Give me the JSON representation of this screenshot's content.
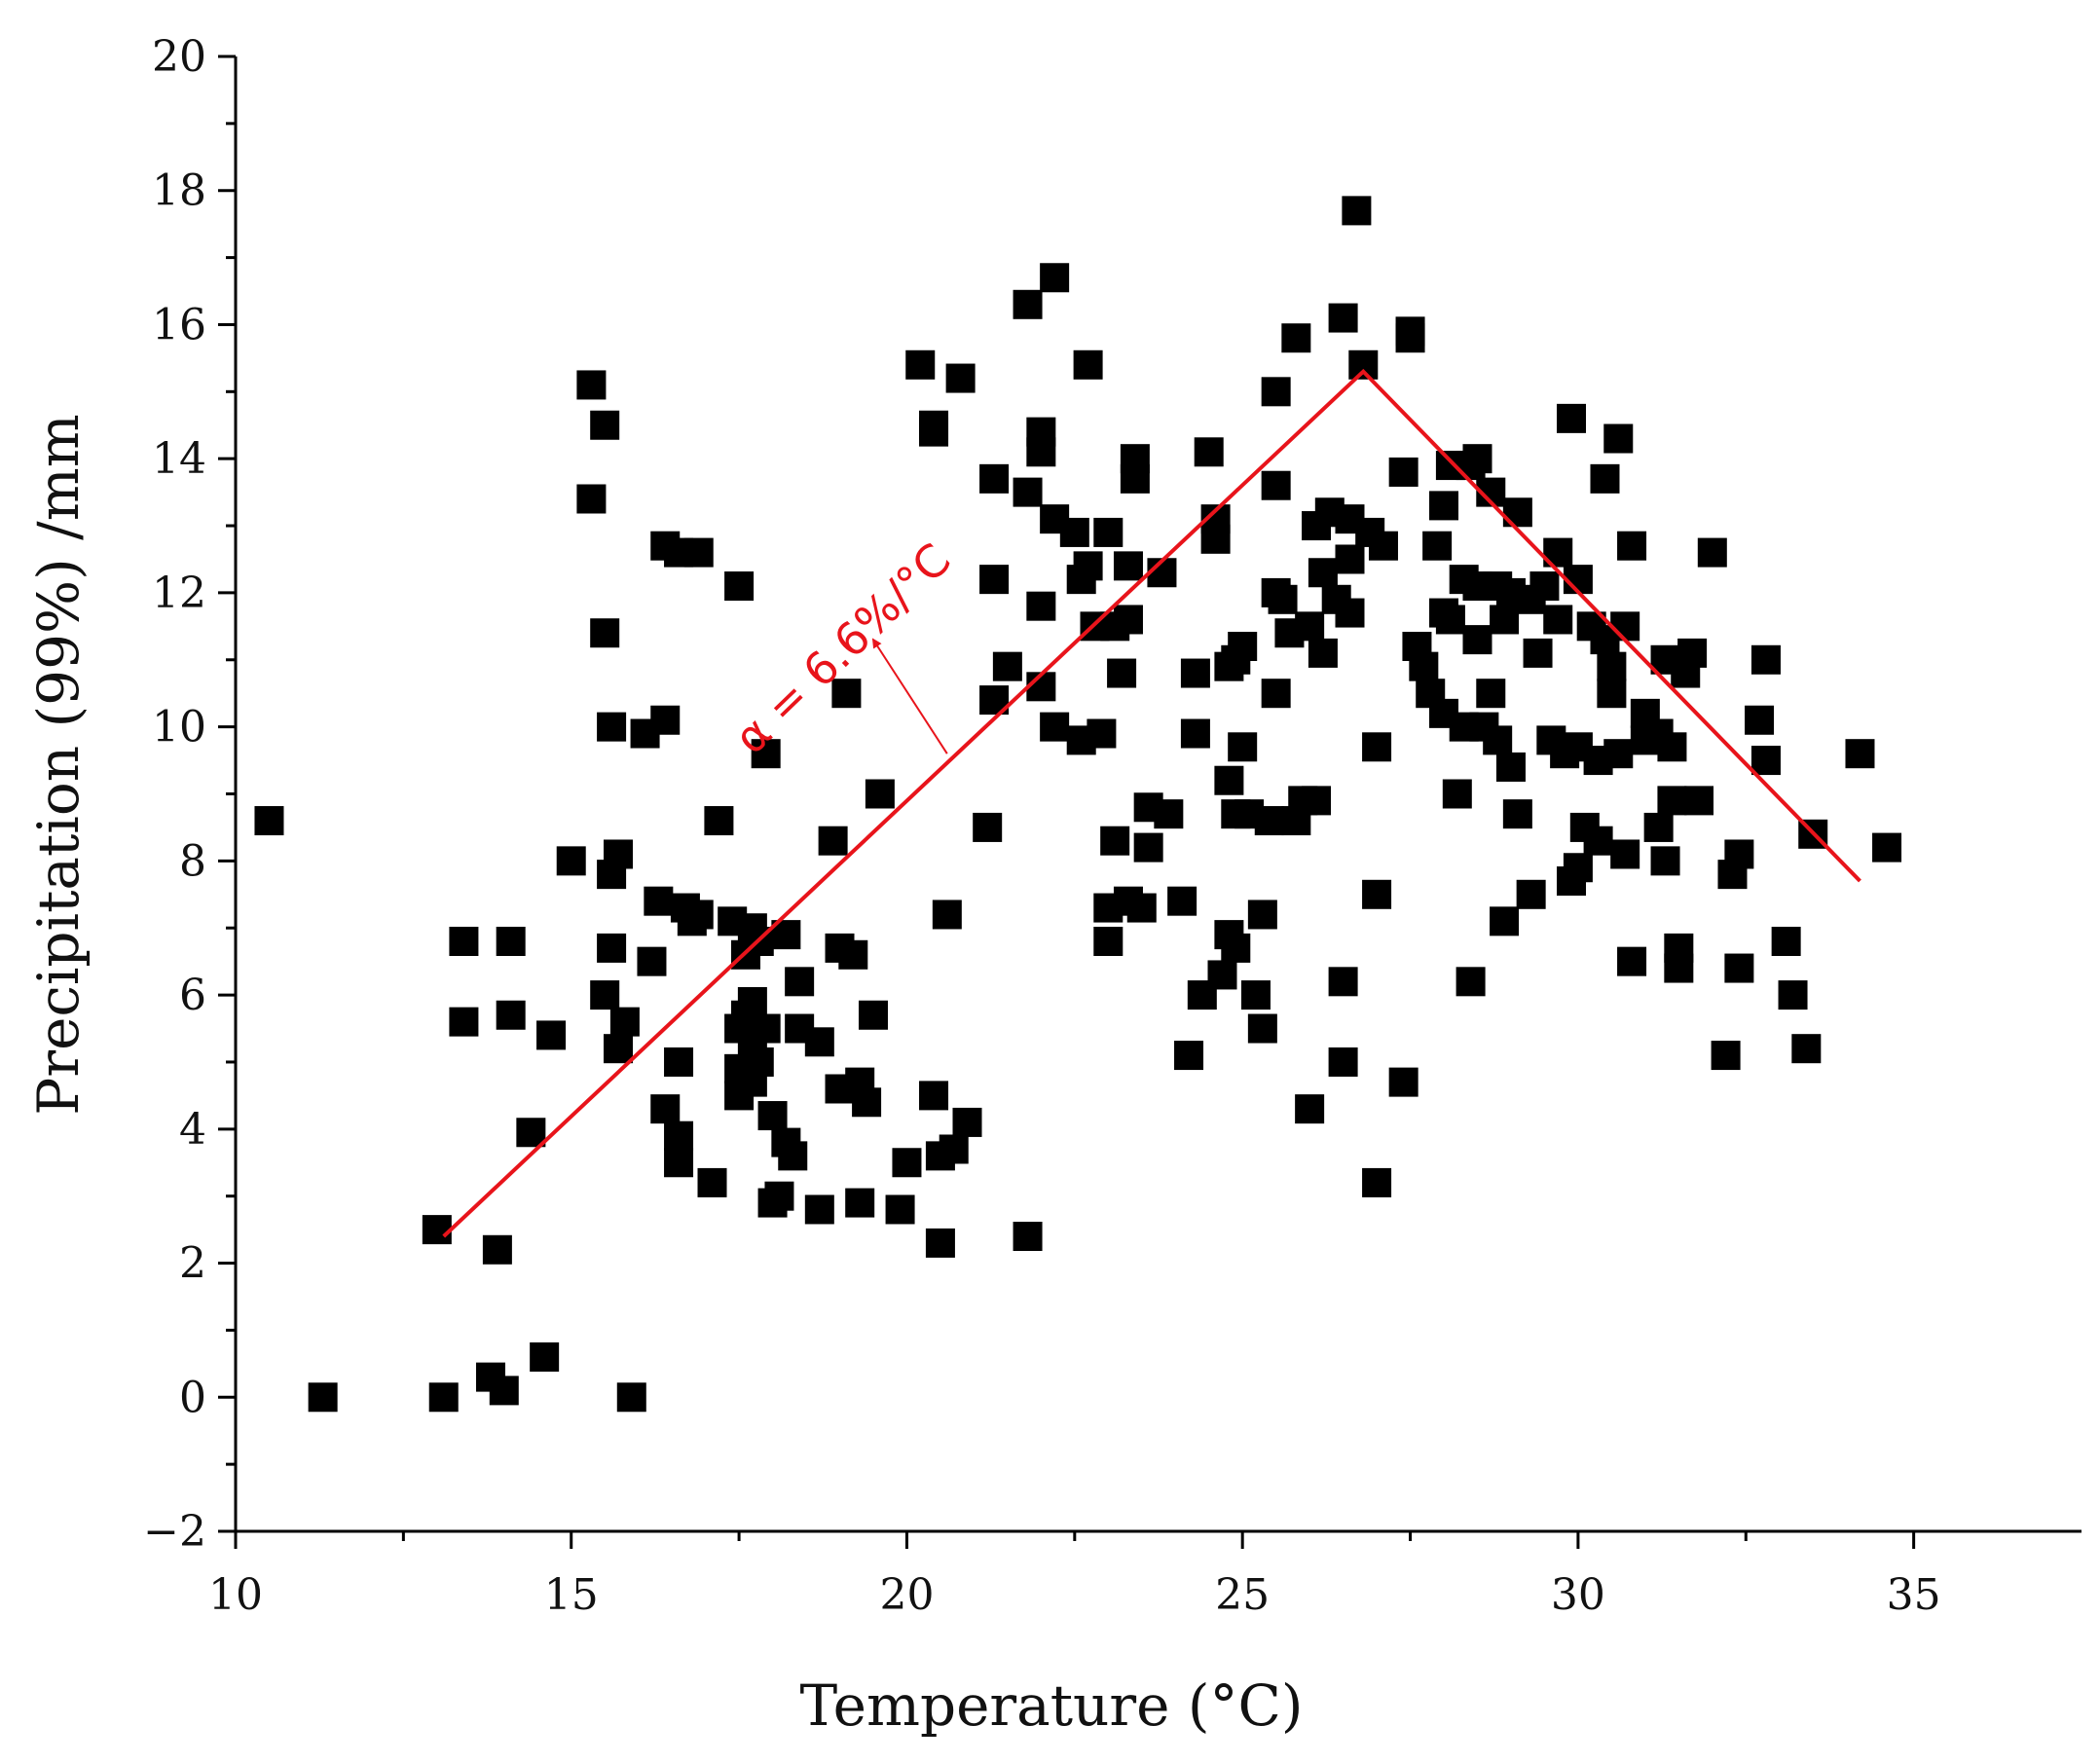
{
  "chart_data": {
    "type": "scatter",
    "title": "",
    "xlabel": "Temperature (°C)",
    "ylabel": "Precipitation (99%) /mm",
    "xlim": [
      10,
      37.5
    ],
    "ylim": [
      -2,
      20
    ],
    "xticks": [
      10,
      15,
      20,
      25,
      30,
      35
    ],
    "yticks": [
      -2,
      0,
      2,
      4,
      6,
      8,
      10,
      12,
      14,
      16,
      18,
      20
    ],
    "grid": false,
    "marker": "square",
    "marker_color": "#000000",
    "points": [
      [
        10.5,
        8.6
      ],
      [
        11.3,
        0.0
      ],
      [
        13.0,
        2.5
      ],
      [
        13.1,
        0.0
      ],
      [
        13.4,
        6.8
      ],
      [
        13.4,
        5.6
      ],
      [
        13.8,
        0.3
      ],
      [
        13.9,
        2.2
      ],
      [
        14.0,
        0.1
      ],
      [
        14.1,
        6.8
      ],
      [
        14.1,
        5.7
      ],
      [
        14.4,
        3.95
      ],
      [
        14.6,
        0.6
      ],
      [
        14.7,
        5.4
      ],
      [
        15.0,
        8.0
      ],
      [
        15.3,
        15.1
      ],
      [
        15.3,
        13.4
      ],
      [
        15.5,
        14.5
      ],
      [
        15.5,
        11.4
      ],
      [
        15.5,
        6.0
      ],
      [
        15.6,
        7.8
      ],
      [
        15.6,
        6.7
      ],
      [
        15.6,
        10.0
      ],
      [
        15.7,
        5.2
      ],
      [
        15.7,
        8.1
      ],
      [
        15.8,
        5.6
      ],
      [
        15.9,
        0.0
      ],
      [
        16.1,
        9.9
      ],
      [
        16.2,
        6.5
      ],
      [
        16.3,
        7.4
      ],
      [
        16.4,
        12.7
      ],
      [
        16.4,
        10.1
      ],
      [
        16.4,
        4.3
      ],
      [
        16.6,
        12.6
      ],
      [
        16.6,
        5.0
      ],
      [
        16.6,
        3.9
      ],
      [
        16.6,
        3.5
      ],
      [
        16.7,
        7.3
      ],
      [
        16.8,
        7.1
      ],
      [
        16.9,
        12.6
      ],
      [
        16.9,
        7.2
      ],
      [
        17.1,
        3.2
      ],
      [
        17.2,
        8.6
      ],
      [
        17.4,
        7.1
      ],
      [
        17.5,
        12.1
      ],
      [
        17.5,
        5.5
      ],
      [
        17.5,
        4.9
      ],
      [
        17.5,
        4.5
      ],
      [
        17.6,
        6.6
      ],
      [
        17.6,
        5.7
      ],
      [
        17.7,
        7.0
      ],
      [
        17.7,
        5.9
      ],
      [
        17.7,
        5.3
      ],
      [
        17.7,
        4.7
      ],
      [
        17.8,
        6.8
      ],
      [
        17.8,
        5.0
      ],
      [
        17.9,
        9.6
      ],
      [
        17.9,
        5.5
      ],
      [
        18.0,
        4.2
      ],
      [
        18.0,
        2.9
      ],
      [
        18.1,
        3.0
      ],
      [
        18.2,
        6.9
      ],
      [
        18.2,
        3.8
      ],
      [
        18.3,
        3.6
      ],
      [
        18.4,
        6.2
      ],
      [
        18.4,
        5.5
      ],
      [
        18.7,
        5.3
      ],
      [
        18.7,
        2.8
      ],
      [
        18.9,
        8.3
      ],
      [
        19.0,
        6.7
      ],
      [
        19.0,
        4.6
      ],
      [
        19.1,
        10.5
      ],
      [
        19.2,
        6.6
      ],
      [
        19.3,
        4.7
      ],
      [
        19.3,
        2.9
      ],
      [
        19.4,
        4.4
      ],
      [
        19.5,
        5.7
      ],
      [
        19.6,
        9.0
      ],
      [
        19.9,
        2.8
      ],
      [
        20.0,
        3.5
      ],
      [
        20.2,
        15.4
      ],
      [
        20.4,
        14.5
      ],
      [
        20.4,
        14.4
      ],
      [
        20.4,
        4.5
      ],
      [
        20.5,
        3.6
      ],
      [
        20.5,
        2.3
      ],
      [
        20.6,
        7.2
      ],
      [
        20.7,
        3.7
      ],
      [
        20.8,
        15.2
      ],
      [
        20.9,
        4.1
      ],
      [
        21.2,
        8.5
      ],
      [
        21.3,
        13.7
      ],
      [
        21.3,
        12.2
      ],
      [
        21.3,
        10.4
      ],
      [
        21.5,
        10.9
      ],
      [
        21.8,
        16.3
      ],
      [
        21.8,
        13.5
      ],
      [
        21.8,
        2.4
      ],
      [
        22.0,
        14.4
      ],
      [
        22.0,
        14.1
      ],
      [
        22.0,
        11.8
      ],
      [
        22.0,
        10.6
      ],
      [
        22.2,
        16.7
      ],
      [
        22.2,
        13.1
      ],
      [
        22.2,
        10.0
      ],
      [
        22.5,
        12.9
      ],
      [
        22.6,
        12.2
      ],
      [
        22.6,
        9.8
      ],
      [
        22.7,
        15.4
      ],
      [
        22.7,
        12.4
      ],
      [
        22.8,
        11.5
      ],
      [
        22.9,
        9.9
      ],
      [
        23.0,
        12.9
      ],
      [
        23.0,
        7.3
      ],
      [
        23.0,
        6.8
      ],
      [
        23.1,
        11.5
      ],
      [
        23.1,
        8.3
      ],
      [
        23.2,
        10.8
      ],
      [
        23.3,
        12.4
      ],
      [
        23.3,
        11.6
      ],
      [
        23.3,
        7.4
      ],
      [
        23.4,
        14.0
      ],
      [
        23.4,
        13.7
      ],
      [
        23.5,
        7.3
      ],
      [
        23.6,
        8.8
      ],
      [
        23.6,
        8.2
      ],
      [
        23.8,
        12.3
      ],
      [
        23.9,
        8.7
      ],
      [
        24.1,
        7.4
      ],
      [
        24.2,
        5.1
      ],
      [
        24.3,
        10.8
      ],
      [
        24.3,
        9.9
      ],
      [
        24.4,
        6.0
      ],
      [
        24.5,
        14.1
      ],
      [
        24.6,
        13.1
      ],
      [
        24.6,
        12.8
      ],
      [
        24.7,
        6.3
      ],
      [
        24.8,
        10.9
      ],
      [
        24.8,
        9.2
      ],
      [
        24.8,
        6.9
      ],
      [
        24.9,
        11.0
      ],
      [
        24.9,
        6.7
      ],
      [
        24.9,
        8.7
      ],
      [
        25.0,
        11.2
      ],
      [
        25.0,
        9.7
      ],
      [
        25.1,
        8.7
      ],
      [
        25.2,
        6.0
      ],
      [
        25.3,
        5.5
      ],
      [
        25.3,
        7.2
      ],
      [
        25.4,
        8.6
      ],
      [
        25.5,
        15.0
      ],
      [
        25.5,
        13.6
      ],
      [
        25.5,
        12.0
      ],
      [
        25.5,
        10.5
      ],
      [
        25.6,
        11.9
      ],
      [
        25.7,
        11.4
      ],
      [
        25.8,
        15.8
      ],
      [
        25.8,
        8.6
      ],
      [
        25.9,
        8.9
      ],
      [
        26.0,
        11.5
      ],
      [
        26.0,
        4.3
      ],
      [
        26.1,
        13.0
      ],
      [
        26.1,
        8.9
      ],
      [
        26.2,
        12.3
      ],
      [
        26.2,
        11.1
      ],
      [
        26.3,
        13.2
      ],
      [
        26.4,
        11.9
      ],
      [
        26.5,
        16.1
      ],
      [
        26.5,
        6.2
      ],
      [
        26.5,
        5.0
      ],
      [
        26.6,
        13.1
      ],
      [
        26.6,
        12.5
      ],
      [
        26.6,
        11.7
      ],
      [
        26.7,
        17.7
      ],
      [
        26.8,
        15.4
      ],
      [
        26.9,
        12.9
      ],
      [
        27.0,
        9.7
      ],
      [
        27.0,
        7.5
      ],
      [
        27.0,
        3.2
      ],
      [
        27.1,
        12.7
      ],
      [
        27.4,
        13.8
      ],
      [
        27.4,
        4.7
      ],
      [
        27.5,
        15.9
      ],
      [
        27.5,
        15.8
      ],
      [
        27.6,
        11.2
      ],
      [
        27.7,
        10.9
      ],
      [
        27.8,
        10.5
      ],
      [
        27.9,
        12.7
      ],
      [
        28.0,
        13.3
      ],
      [
        28.0,
        11.7
      ],
      [
        28.0,
        10.2
      ],
      [
        28.1,
        13.9
      ],
      [
        28.1,
        11.6
      ],
      [
        28.2,
        9.0
      ],
      [
        28.3,
        12.2
      ],
      [
        28.3,
        10.0
      ],
      [
        28.4,
        13.9
      ],
      [
        28.4,
        6.2
      ],
      [
        28.5,
        14.0
      ],
      [
        28.5,
        12.1
      ],
      [
        28.5,
        11.3
      ],
      [
        28.6,
        10.0
      ],
      [
        28.7,
        13.5
      ],
      [
        28.7,
        10.5
      ],
      [
        28.8,
        12.1
      ],
      [
        28.8,
        9.8
      ],
      [
        28.9,
        11.6
      ],
      [
        28.9,
        7.1
      ],
      [
        29.0,
        12.0
      ],
      [
        29.0,
        9.4
      ],
      [
        29.1,
        13.2
      ],
      [
        29.1,
        8.7
      ],
      [
        29.3,
        11.9
      ],
      [
        29.3,
        7.5
      ],
      [
        29.4,
        11.1
      ],
      [
        29.5,
        12.1
      ],
      [
        29.6,
        9.8
      ],
      [
        29.7,
        12.6
      ],
      [
        29.7,
        11.6
      ],
      [
        29.8,
        9.6
      ],
      [
        29.9,
        7.7
      ],
      [
        29.9,
        14.6
      ],
      [
        30.0,
        12.2
      ],
      [
        30.0,
        9.7
      ],
      [
        30.0,
        7.9
      ],
      [
        30.1,
        8.5
      ],
      [
        30.2,
        11.5
      ],
      [
        30.3,
        9.5
      ],
      [
        30.3,
        8.3
      ],
      [
        30.4,
        13.7
      ],
      [
        30.4,
        11.3
      ],
      [
        30.5,
        10.9
      ],
      [
        30.5,
        10.5
      ],
      [
        30.6,
        14.3
      ],
      [
        30.6,
        9.6
      ],
      [
        30.7,
        11.5
      ],
      [
        30.7,
        8.1
      ],
      [
        30.8,
        12.7
      ],
      [
        30.8,
        6.5
      ],
      [
        31.0,
        10.2
      ],
      [
        31.0,
        9.8
      ],
      [
        31.2,
        9.9
      ],
      [
        31.2,
        8.5
      ],
      [
        31.3,
        11.0
      ],
      [
        31.3,
        8.0
      ],
      [
        31.4,
        9.7
      ],
      [
        31.4,
        8.9
      ],
      [
        31.5,
        6.7
      ],
      [
        31.5,
        6.4
      ],
      [
        31.6,
        10.8
      ],
      [
        31.7,
        11.1
      ],
      [
        31.8,
        8.9
      ],
      [
        32.0,
        12.6
      ],
      [
        32.2,
        5.1
      ],
      [
        32.3,
        7.8
      ],
      [
        32.4,
        6.4
      ],
      [
        32.4,
        8.1
      ],
      [
        32.7,
        10.1
      ],
      [
        32.8,
        11.0
      ],
      [
        32.8,
        9.5
      ],
      [
        33.1,
        6.8
      ],
      [
        33.2,
        6.0
      ],
      [
        33.4,
        5.2
      ],
      [
        33.5,
        8.4
      ],
      [
        34.2,
        9.6
      ],
      [
        34.6,
        8.2
      ]
    ],
    "trend_lines": [
      {
        "color": "#e8141b",
        "points": [
          [
            13.1,
            2.4
          ],
          [
            26.8,
            15.3
          ],
          [
            34.2,
            7.7
          ]
        ]
      }
    ],
    "annotations": [
      {
        "text": "α = 6.6%/°C",
        "color": "#e8141b",
        "x": 19.2,
        "y": 11.0,
        "arrow_from": [
          20.6,
          9.6
        ],
        "arrow_to": [
          19.5,
          11.3
        ],
        "rotation": -44
      }
    ]
  }
}
